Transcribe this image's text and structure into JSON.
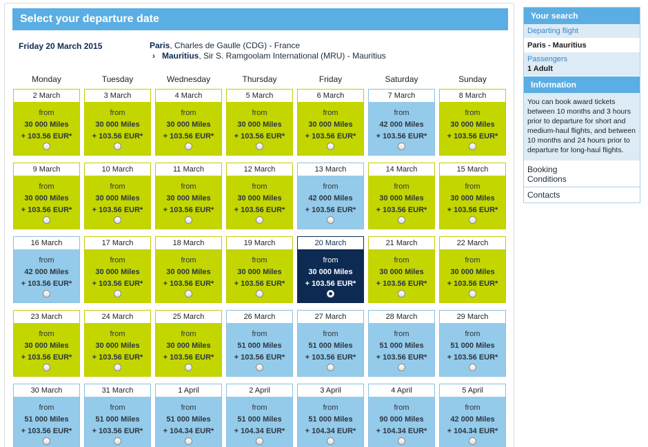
{
  "header": {
    "title": "Select your departure date"
  },
  "selected_date_label": "Friday 20 March 2015",
  "route": {
    "origin_city": "Paris",
    "origin_detail": ", Charles de Gaulle (CDG) - France",
    "destination_city": "Mauritius",
    "destination_detail": ", Sir S. Ramgoolam International (MRU) - Mauritius",
    "arrow": "›"
  },
  "weekdays": [
    "Monday",
    "Tuesday",
    "Wednesday",
    "Thursday",
    "Friday",
    "Saturday",
    "Sunday"
  ],
  "calendar": {
    "from_label": "from",
    "weeks": [
      [
        {
          "date": "2 March",
          "miles": "30 000 Miles",
          "price": "+ 103.56 EUR*",
          "status": "green"
        },
        {
          "date": "3 March",
          "miles": "30 000 Miles",
          "price": "+ 103.56 EUR*",
          "status": "green"
        },
        {
          "date": "4 March",
          "miles": "30 000 Miles",
          "price": "+ 103.56 EUR*",
          "status": "green"
        },
        {
          "date": "5 March",
          "miles": "30 000 Miles",
          "price": "+ 103.56 EUR*",
          "status": "green"
        },
        {
          "date": "6 March",
          "miles": "30 000 Miles",
          "price": "+ 103.56 EUR*",
          "status": "green"
        },
        {
          "date": "7 March",
          "miles": "42 000 Miles",
          "price": "+ 103.56 EUR*",
          "status": "blue"
        },
        {
          "date": "8 March",
          "miles": "30 000 Miles",
          "price": "+ 103.56 EUR*",
          "status": "green"
        }
      ],
      [
        {
          "date": "9 March",
          "miles": "30 000 Miles",
          "price": "+ 103.56 EUR*",
          "status": "green"
        },
        {
          "date": "10 March",
          "miles": "30 000 Miles",
          "price": "+ 103.56 EUR*",
          "status": "green"
        },
        {
          "date": "11 March",
          "miles": "30 000 Miles",
          "price": "+ 103.56 EUR*",
          "status": "green"
        },
        {
          "date": "12 March",
          "miles": "30 000 Miles",
          "price": "+ 103.56 EUR*",
          "status": "green"
        },
        {
          "date": "13 March",
          "miles": "42 000 Miles",
          "price": "+ 103.56 EUR*",
          "status": "blue"
        },
        {
          "date": "14 March",
          "miles": "30 000 Miles",
          "price": "+ 103.56 EUR*",
          "status": "green"
        },
        {
          "date": "15 March",
          "miles": "30 000 Miles",
          "price": "+ 103.56 EUR*",
          "status": "green"
        }
      ],
      [
        {
          "date": "16 March",
          "miles": "42 000 Miles",
          "price": "+ 103.56 EUR*",
          "status": "blue"
        },
        {
          "date": "17 March",
          "miles": "30 000 Miles",
          "price": "+ 103.56 EUR*",
          "status": "green"
        },
        {
          "date": "18 March",
          "miles": "30 000 Miles",
          "price": "+ 103.56 EUR*",
          "status": "green"
        },
        {
          "date": "19 March",
          "miles": "30 000 Miles",
          "price": "+ 103.56 EUR*",
          "status": "green"
        },
        {
          "date": "20 March",
          "miles": "30 000 Miles",
          "price": "+ 103.56 EUR*",
          "status": "selected"
        },
        {
          "date": "21 March",
          "miles": "30 000 Miles",
          "price": "+ 103.56 EUR*",
          "status": "green"
        },
        {
          "date": "22 March",
          "miles": "30 000 Miles",
          "price": "+ 103.56 EUR*",
          "status": "green"
        }
      ],
      [
        {
          "date": "23 March",
          "miles": "30 000 Miles",
          "price": "+ 103.56 EUR*",
          "status": "green"
        },
        {
          "date": "24 March",
          "miles": "30 000 Miles",
          "price": "+ 103.56 EUR*",
          "status": "green"
        },
        {
          "date": "25 March",
          "miles": "30 000 Miles",
          "price": "+ 103.56 EUR*",
          "status": "green"
        },
        {
          "date": "26 March",
          "miles": "51 000 Miles",
          "price": "+ 103.56 EUR*",
          "status": "blue"
        },
        {
          "date": "27 March",
          "miles": "51 000 Miles",
          "price": "+ 103.56 EUR*",
          "status": "blue"
        },
        {
          "date": "28 March",
          "miles": "51 000 Miles",
          "price": "+ 103.56 EUR*",
          "status": "blue"
        },
        {
          "date": "29 March",
          "miles": "51 000 Miles",
          "price": "+ 103.56 EUR*",
          "status": "blue"
        }
      ],
      [
        {
          "date": "30 March",
          "miles": "51 000 Miles",
          "price": "+ 103.56 EUR*",
          "status": "blue"
        },
        {
          "date": "31 March",
          "miles": "51 000 Miles",
          "price": "+ 103.56 EUR*",
          "status": "blue"
        },
        {
          "date": "1 April",
          "miles": "51 000 Miles",
          "price": "+ 104.34 EUR*",
          "status": "blue"
        },
        {
          "date": "2 April",
          "miles": "51 000 Miles",
          "price": "+ 104.34 EUR*",
          "status": "blue"
        },
        {
          "date": "3 April",
          "miles": "51 000 Miles",
          "price": "+ 104.34 EUR*",
          "status": "blue"
        },
        {
          "date": "4 April",
          "miles": "90 000 Miles",
          "price": "+ 104.34 EUR*",
          "status": "blue"
        },
        {
          "date": "5 April",
          "miles": "42 000 Miles",
          "price": "+ 104.34 EUR*",
          "status": "blue"
        }
      ]
    ]
  },
  "sidebar": {
    "your_search_title": "Your search",
    "departing_flight_label": "Departing flight",
    "departing_flight_value": "Paris - Mauritius",
    "passengers_label": "Passengers",
    "passengers_value": "1 Adult",
    "information_title": "Information",
    "information_text": "You can book award tickets between 10 months and 3 hours prior to departure for short and medium-haul flights, and between 10 months and 24 hours prior to departure for long-haul flights.",
    "booking_conditions_link": "Booking Conditions",
    "contacts_link": "Contacts"
  },
  "colors": {
    "title_bar": "#5aaee3",
    "standard_fare": "#c3d600",
    "higher_fare": "#95cbea",
    "selected": "#0d2a52"
  }
}
